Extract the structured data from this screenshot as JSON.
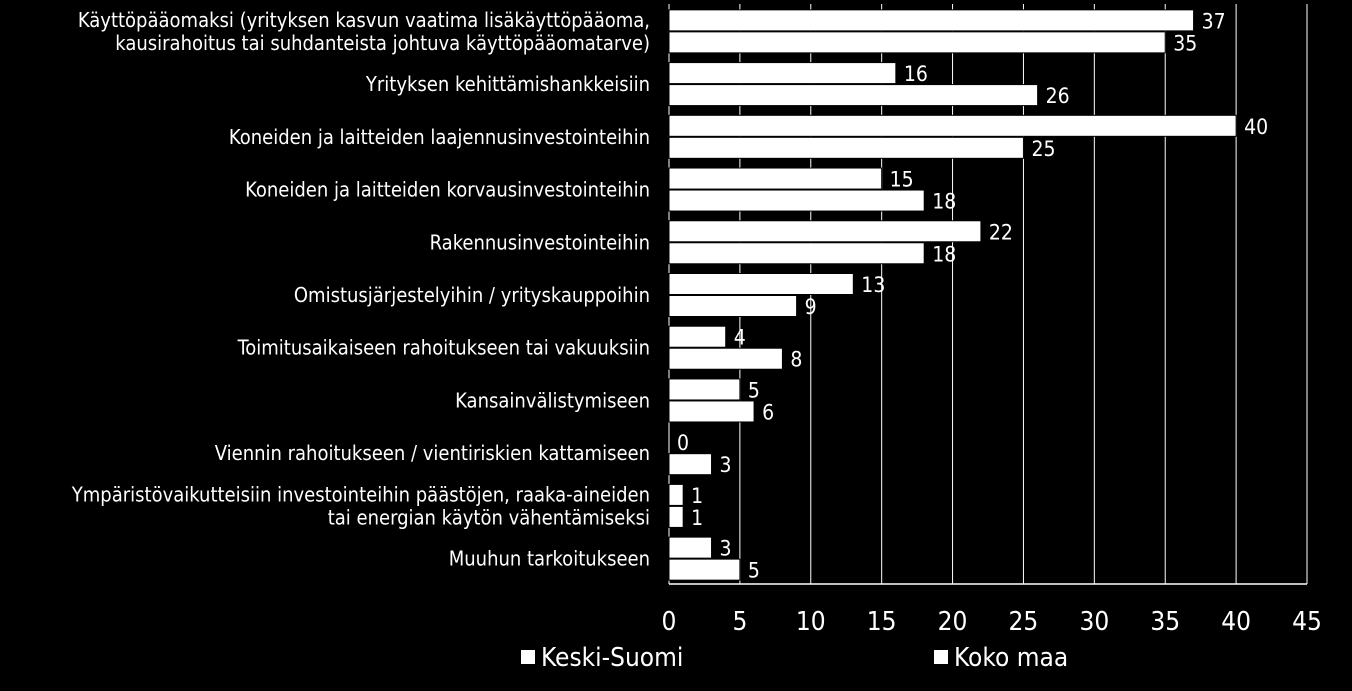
{
  "chart_data": {
    "type": "bar",
    "orientation": "horizontal",
    "categories": [
      [
        "Käyttöpääomaksi (yrityksen kasvun vaatima lisäkäyttöpääoma,",
        "kausirahoitus tai suhdanteista johtuva käyttöpääomatarve)"
      ],
      [
        "Yrityksen kehittämishankkeisiin"
      ],
      [
        "Koneiden ja laitteiden laajennusinvestointeihin"
      ],
      [
        "Koneiden ja laitteiden korvausinvestointeihin"
      ],
      [
        "Rakennusinvestointeihin"
      ],
      [
        "Omistusjärjestelyihin / yrityskauppoihin"
      ],
      [
        "Toimitusaikaiseen rahoitukseen tai vakuuksiin"
      ],
      [
        "Kansainvälistymiseen"
      ],
      [
        "Viennin rahoitukseen / vientiriskien kattamiseen"
      ],
      [
        "Ympäristövaikutteisiin investointeihin päästöjen, raaka-aineiden",
        "tai energian käytön vähentämiseksi"
      ],
      [
        "Muuhun tarkoitukseen"
      ]
    ],
    "series": [
      {
        "name": "Keski-Suomi",
        "values": [
          37,
          16,
          40,
          15,
          22,
          13,
          4,
          5,
          0,
          1,
          3
        ]
      },
      {
        "name": "Koko maa",
        "values": [
          35,
          26,
          25,
          18,
          18,
          9,
          8,
          6,
          3,
          1,
          5
        ]
      }
    ],
    "xlim": [
      0,
      45
    ],
    "xticks": [
      "0",
      "5",
      "10",
      "15",
      "20",
      "25",
      "30",
      "35",
      "40",
      "45"
    ],
    "grid": true,
    "legend_position": "bottom",
    "colors": {
      "background": "#000000",
      "bar": "#ffffff",
      "bar_edge": "#000000",
      "grid": "#ffffff",
      "text": "#ffffff"
    }
  }
}
